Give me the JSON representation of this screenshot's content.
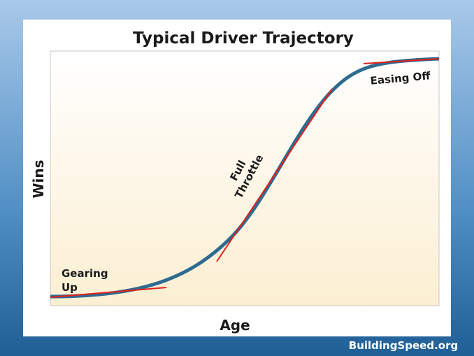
{
  "title": "Typical Driver Trajectory",
  "y_label": "Wins",
  "x_label": "Age",
  "annotations": [
    {
      "lines": [
        "Gearing",
        "Up"
      ]
    },
    {
      "lines": [
        "Full",
        "Throttle"
      ]
    },
    {
      "lines": [
        "Easing Off"
      ]
    }
  ],
  "watermark": "BuildingSpeed.org"
}
